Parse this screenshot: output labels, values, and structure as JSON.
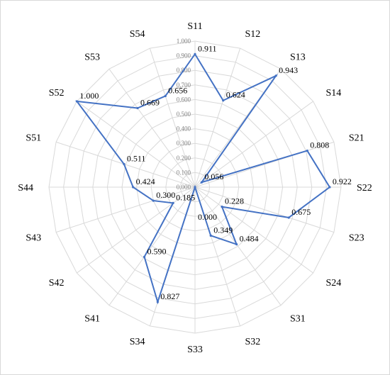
{
  "chart_data": {
    "type": "radar",
    "title": "",
    "categories": [
      "S11",
      "S12",
      "S13",
      "S14",
      "S21",
      "S22",
      "S23",
      "S24",
      "S31",
      "S32",
      "S33",
      "S34",
      "S41",
      "S42",
      "S43",
      "S44",
      "S51",
      "S52",
      "S53",
      "S54"
    ],
    "series": [
      {
        "values": [
          0.911,
          0.624,
          0.943,
          0.056,
          0.808,
          0.922,
          0.675,
          0.228,
          0.484,
          0.349,
          0.0,
          0.827,
          0.59,
          0.185,
          0.3,
          0.424,
          0.511,
          1.0,
          0.669,
          0.656
        ],
        "value_labels": [
          "0.911",
          "0.624",
          "0.943",
          "0.056",
          "0.808",
          "0.922",
          "0.675",
          "0.228",
          "0.484",
          "0.349",
          "0.000",
          "0.827",
          "0.590",
          "0.185",
          "0.300",
          "0.424",
          "0.511",
          "1.000",
          "0.669",
          "0.656"
        ],
        "color": "#4472c4"
      }
    ],
    "radial_range": [
      0,
      1.0
    ],
    "ticks": [
      "0.000",
      "0.100",
      "0.200",
      "0.300",
      "0.400",
      "0.500",
      "0.600",
      "0.700",
      "0.800",
      "0.900",
      "1.000"
    ],
    "grid": true,
    "legend": "none",
    "grid_color": "#d9d9d9",
    "axis_color": "#d9d9d9"
  }
}
